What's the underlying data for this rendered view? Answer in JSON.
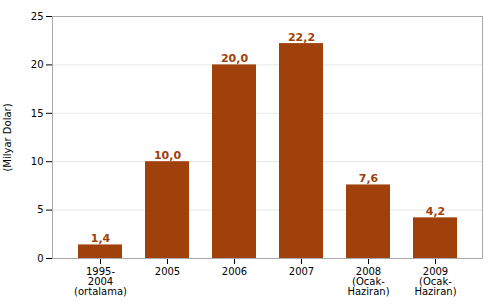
{
  "chart_data": {
    "type": "bar",
    "categories": [
      "1995-\n2004\n(ortalama)",
      "2005",
      "2006",
      "2007",
      "2008\n(Ocak-\nHaziran)",
      "2009\n(Ocak-\nHaziran)"
    ],
    "values": [
      1.4,
      10.0,
      20.0,
      22.2,
      7.6,
      4.2
    ],
    "value_labels": [
      "1,4",
      "10,0",
      "20,0",
      "22,2",
      "7,6",
      "4,2"
    ],
    "color": "#A0400A",
    "ylabel": "(Milyar Dolar)",
    "ylim": [
      0,
      25
    ],
    "yticks": [
      0,
      5,
      10,
      15,
      20,
      25
    ],
    "grid": true,
    "data_labels": true
  }
}
